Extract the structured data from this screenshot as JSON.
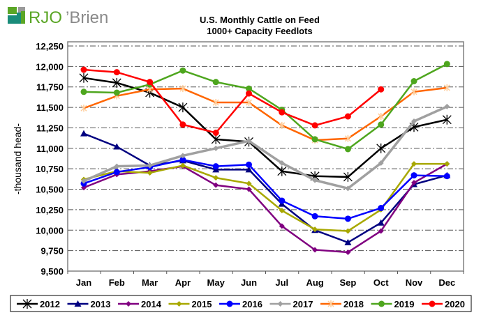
{
  "logo": {
    "text_rjo": "RJO",
    "text_brien": "’Brien",
    "color_green": "#5ba626",
    "color_teal": "#1a8c7a",
    "color_gray": "#8a8a8a"
  },
  "chart_data": {
    "type": "line",
    "title": "U.S. Monthly Cattle on Feed",
    "subtitle": "1000+ Capacity Feedlots",
    "xlabel": "",
    "ylabel": "-thousand head-",
    "ylim": [
      9500,
      12250
    ],
    "yticks": [
      9500,
      9750,
      10000,
      10250,
      10500,
      10750,
      11000,
      11250,
      11500,
      11750,
      12000,
      12250
    ],
    "ytick_labels": [
      "9,500",
      "9,750",
      "10,000",
      "10,250",
      "10,500",
      "10,750",
      "11,000",
      "11,250",
      "11,500",
      "11,750",
      "12,000",
      "12,250"
    ],
    "grid": true,
    "legend_position": "bottom",
    "categories": [
      "Jan",
      "Feb",
      "Mar",
      "Apr",
      "May",
      "Jun",
      "Jul",
      "Aug",
      "Sep",
      "Oct",
      "Nov",
      "Dec"
    ],
    "series": [
      {
        "name": "2012",
        "color": "#000000",
        "marker": "star",
        "values": [
          11860,
          11800,
          11680,
          11500,
          11110,
          11080,
          10720,
          10660,
          10650,
          11000,
          11260,
          11350
        ]
      },
      {
        "name": "2013",
        "color": "#000080",
        "marker": "triangle",
        "values": [
          11180,
          11020,
          10790,
          10850,
          10740,
          10740,
          10320,
          10000,
          9850,
          10090,
          10560,
          10670
        ]
      },
      {
        "name": "2014",
        "color": "#800080",
        "marker": "diamond",
        "values": [
          10520,
          10680,
          10720,
          10780,
          10550,
          10500,
          10050,
          9760,
          9730,
          9990,
          10580,
          10810
        ]
      },
      {
        "name": "2015",
        "color": "#a8a800",
        "marker": "diamond",
        "values": [
          10620,
          10720,
          10700,
          10790,
          10640,
          10570,
          10240,
          10010,
          9990,
          10250,
          10810,
          10810
        ]
      },
      {
        "name": "2016",
        "color": "#0000ff",
        "marker": "circle",
        "values": [
          10570,
          10710,
          10770,
          10860,
          10780,
          10800,
          10360,
          10170,
          10140,
          10270,
          10670,
          10660
        ]
      },
      {
        "name": "2017",
        "color": "#a0a0a0",
        "marker": "diamond",
        "values": [
          10600,
          10780,
          10790,
          10910,
          11000,
          11090,
          10820,
          10610,
          10510,
          10820,
          11330,
          11510
        ]
      },
      {
        "name": "2018",
        "color": "#ff6600",
        "marker": "cross",
        "values": [
          11490,
          11640,
          11720,
          11730,
          11560,
          11560,
          11280,
          11100,
          11120,
          11390,
          11690,
          11740
        ]
      },
      {
        "name": "2019",
        "color": "#4ea61e",
        "marker": "circle",
        "values": [
          11690,
          11680,
          11780,
          11950,
          11810,
          11730,
          11470,
          11110,
          10990,
          11290,
          11820,
          12030
        ]
      },
      {
        "name": "2020",
        "color": "#ff0000",
        "marker": "circle",
        "values": [
          11960,
          11930,
          11810,
          11290,
          11190,
          11670,
          11440,
          11280,
          11390,
          11720,
          null,
          null
        ]
      }
    ]
  }
}
